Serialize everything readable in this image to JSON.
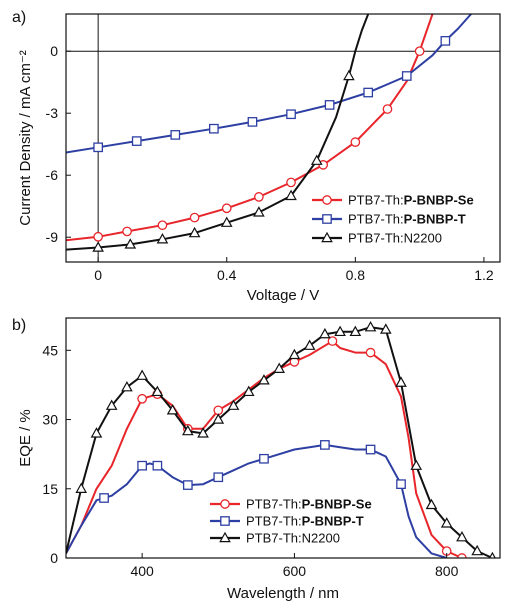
{
  "chart_data": [
    {
      "panel_label": "a)",
      "type": "line",
      "xlabel": "Voltage / V",
      "ylabel": "Current Density / mA cm⁻²",
      "xlim": [
        -0.1,
        1.25
      ],
      "ylim": [
        -10.2,
        1.8
      ],
      "x_ticks": [
        0,
        0.4,
        0.8,
        1.2
      ],
      "x_tick_labels": [
        "0",
        "0.4",
        "0.8",
        "1.2"
      ],
      "y_ticks": [
        0,
        -3,
        -6,
        -9
      ],
      "y_tick_labels": [
        "0",
        "-3",
        "-6",
        "-9"
      ],
      "reference_lines": {
        "x": 0,
        "y": 0
      },
      "legend_position": "lower-right",
      "series": [
        {
          "name_plain": "PTB7-Th:",
          "name_bold": "P-BNBP-Se",
          "color": "#e8252a",
          "marker": "circle",
          "x": [
            -0.1,
            0.0,
            0.09,
            0.2,
            0.3,
            0.4,
            0.5,
            0.6,
            0.7,
            0.8,
            0.9,
            0.96,
            1.0,
            1.04
          ],
          "y": [
            -9.15,
            -8.98,
            -8.72,
            -8.42,
            -8.05,
            -7.6,
            -7.05,
            -6.35,
            -5.5,
            -4.4,
            -2.8,
            -1.45,
            0.0,
            1.8
          ],
          "marker_x": [
            0.0,
            0.09,
            0.2,
            0.3,
            0.4,
            0.5,
            0.6,
            0.7,
            0.8,
            0.9,
            1.0
          ]
        },
        {
          "name_plain": "PTB7-Th:",
          "name_bold": "P-BNBP-T",
          "color": "#2e3fa3",
          "marker": "square",
          "x": [
            -0.1,
            0.0,
            0.12,
            0.24,
            0.36,
            0.48,
            0.6,
            0.72,
            0.84,
            0.96,
            1.04,
            1.08,
            1.12,
            1.16
          ],
          "y": [
            -4.9,
            -4.65,
            -4.35,
            -4.05,
            -3.75,
            -3.42,
            -3.05,
            -2.6,
            -2.0,
            -1.2,
            -0.2,
            0.5,
            1.1,
            1.8
          ],
          "marker_x": [
            0.0,
            0.12,
            0.24,
            0.36,
            0.48,
            0.6,
            0.72,
            0.84,
            0.96,
            1.08
          ]
        },
        {
          "name_plain": "PTB7-Th:N2200",
          "name_bold": "",
          "color": "#111111",
          "marker": "triangle",
          "x": [
            -0.1,
            0.0,
            0.1,
            0.2,
            0.3,
            0.4,
            0.5,
            0.6,
            0.68,
            0.74,
            0.78,
            0.8,
            0.82,
            0.84
          ],
          "y": [
            -9.6,
            -9.5,
            -9.35,
            -9.1,
            -8.8,
            -8.3,
            -7.8,
            -7.0,
            -5.3,
            -3.2,
            -1.2,
            0.0,
            1.0,
            1.8
          ],
          "marker_x": [
            0.0,
            0.1,
            0.2,
            0.3,
            0.4,
            0.5,
            0.6,
            0.68,
            0.78
          ]
        }
      ]
    },
    {
      "panel_label": "b)",
      "type": "line",
      "xlabel": "Wavelength / nm",
      "ylabel": "EQE / %",
      "xlim": [
        300,
        870
      ],
      "ylim": [
        0,
        52
      ],
      "x_ticks": [
        400,
        600,
        800
      ],
      "x_tick_labels": [
        "400",
        "600",
        "800"
      ],
      "y_ticks": [
        0,
        15,
        30,
        45
      ],
      "y_tick_labels": [
        "0",
        "15",
        "30",
        "45"
      ],
      "legend_position": "lower-center",
      "series": [
        {
          "name_plain": "PTB7-Th:",
          "name_bold": "P-BNBP-Se",
          "color": "#e8252a",
          "marker": "circle",
          "x": [
            300,
            320,
            340,
            360,
            380,
            400,
            420,
            440,
            460,
            480,
            500,
            520,
            540,
            560,
            580,
            600,
            620,
            640,
            650,
            660,
            680,
            700,
            720,
            740,
            750,
            760,
            780,
            800,
            820
          ],
          "y": [
            1,
            7,
            15,
            20,
            28,
            34.5,
            35.5,
            33,
            28,
            28,
            32,
            34,
            36.5,
            39,
            41,
            42.5,
            44,
            46,
            47,
            45.5,
            44.5,
            44.5,
            42,
            35,
            26,
            14,
            5,
            1.5,
            0
          ],
          "marker_x": [
            400,
            420,
            460,
            500,
            600,
            650,
            700,
            800,
            820
          ]
        },
        {
          "name_plain": "PTB7-Th:",
          "name_bold": "P-BNBP-T",
          "color": "#2e3fa3",
          "marker": "square",
          "x": [
            300,
            320,
            340,
            360,
            380,
            400,
            410,
            420,
            440,
            460,
            480,
            500,
            520,
            540,
            560,
            580,
            600,
            620,
            640,
            660,
            680,
            700,
            720,
            740,
            750,
            760,
            780,
            800
          ],
          "y": [
            1,
            7,
            12.5,
            13.5,
            16,
            20,
            20.5,
            20,
            17.5,
            15.8,
            16,
            17.5,
            19,
            20.5,
            21.5,
            22.5,
            23.5,
            24,
            24.5,
            24,
            23.5,
            23.5,
            22,
            16,
            9,
            4.5,
            1,
            0
          ],
          "marker_x": [
            350,
            400,
            420,
            460,
            500,
            560,
            640,
            700,
            740
          ]
        },
        {
          "name_plain": "PTB7-Th:N2200",
          "name_bold": "",
          "color": "#111111",
          "marker": "triangle",
          "x": [
            300,
            320,
            340,
            360,
            380,
            400,
            420,
            440,
            460,
            480,
            500,
            520,
            540,
            560,
            580,
            600,
            620,
            640,
            660,
            680,
            700,
            720,
            740,
            760,
            780,
            800,
            820,
            840,
            860
          ],
          "y": [
            1,
            15,
            27,
            33,
            37,
            39.5,
            36,
            32,
            27.5,
            27,
            30,
            33,
            36,
            38.5,
            41,
            44,
            46,
            48.5,
            49,
            49,
            50,
            49.5,
            38,
            20,
            11.5,
            7.5,
            4.5,
            1.5,
            0
          ],
          "marker_x": [
            320,
            340,
            360,
            380,
            400,
            420,
            440,
            460,
            480,
            500,
            520,
            540,
            560,
            580,
            600,
            620,
            640,
            660,
            680,
            700,
            720,
            740,
            760,
            780,
            800,
            820,
            840,
            860
          ]
        }
      ]
    }
  ]
}
